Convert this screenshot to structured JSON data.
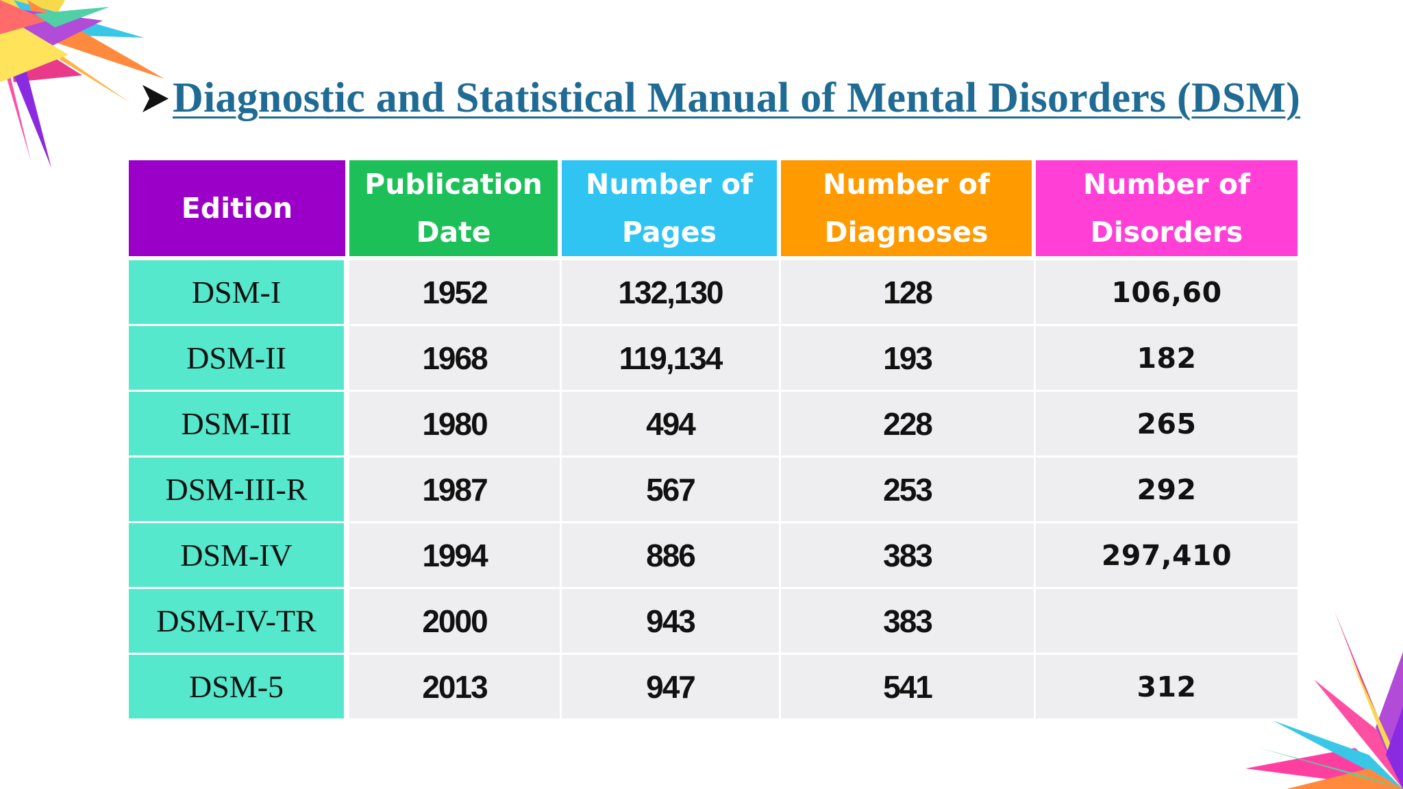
{
  "title": "Diagnostic and Statistical Manual of Mental Disorders (DSM)",
  "table": {
    "headers": {
      "edition": "Edition",
      "date_line1": "Publication",
      "date_line2": "Date",
      "pages_line1": "Number of",
      "pages_line2": "Pages",
      "diagnoses_line1": "Number of",
      "diagnoses_line2": "Diagnoses",
      "disorders_line1": "Number of",
      "disorders_line2": "Disorders"
    },
    "rows": [
      {
        "edition": "DSM-I",
        "date": "1952",
        "pages": "132,130",
        "diagnoses": "128",
        "disorders": "106,60"
      },
      {
        "edition": "DSM-II",
        "date": "1968",
        "pages": "119,134",
        "diagnoses": "193",
        "disorders": "182"
      },
      {
        "edition": "DSM-III",
        "date": "1980",
        "pages": "494",
        "diagnoses": "228",
        "disorders": "265"
      },
      {
        "edition": "DSM-III-R",
        "date": "1987",
        "pages": "567",
        "diagnoses": "253",
        "disorders": "292"
      },
      {
        "edition": "DSM-IV",
        "date": "1994",
        "pages": "886",
        "diagnoses": "383",
        "disorders": "297,410"
      },
      {
        "edition": "DSM-IV-TR",
        "date": "2000",
        "pages": "943",
        "diagnoses": "383",
        "disorders": ""
      },
      {
        "edition": "DSM-5",
        "date": "2013",
        "pages": "947",
        "diagnoses": "541",
        "disorders": "312"
      }
    ]
  },
  "colors": {
    "title": "#1f6b94",
    "header_edition": "#9a00c8",
    "header_date": "#1dbf58",
    "header_pages": "#2fc4f2",
    "header_diagnoses": "#ff9a00",
    "header_disorders": "#ff3fd6",
    "edition_cell": "#55e8cc",
    "data_cell": "#eeeef0"
  },
  "icons": {
    "bullet": "arrow-bullet-icon",
    "decoration": "colorful-starburst"
  }
}
